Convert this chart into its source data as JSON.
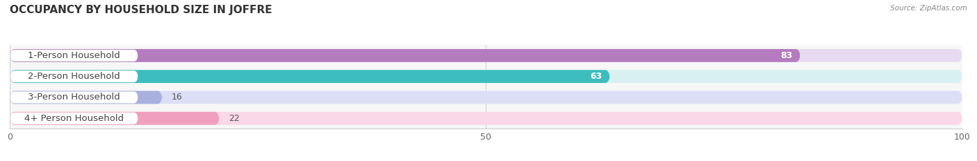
{
  "title": "OCCUPANCY BY HOUSEHOLD SIZE IN JOFFRE",
  "source": "Source: ZipAtlas.com",
  "categories": [
    "1-Person Household",
    "2-Person Household",
    "3-Person Household",
    "4+ Person Household"
  ],
  "values": [
    83,
    63,
    16,
    22
  ],
  "bar_colors": [
    "#b57bbf",
    "#3dbdbd",
    "#a8b0de",
    "#f0a0be"
  ],
  "bar_bg_colors": [
    "#e8daf0",
    "#d8f0f0",
    "#dcdff5",
    "#fad8e8"
  ],
  "label_bg_color": "#ffffff",
  "label_text_color": "#444444",
  "xlim": [
    0,
    100
  ],
  "xticks": [
    0,
    50,
    100
  ],
  "label_fontsize": 9.5,
  "value_fontsize": 9,
  "title_fontsize": 11,
  "bar_height": 0.62,
  "background_color": "#ffffff",
  "plot_bg_color": "#f7f7f7",
  "grid_color": "#cccccc"
}
